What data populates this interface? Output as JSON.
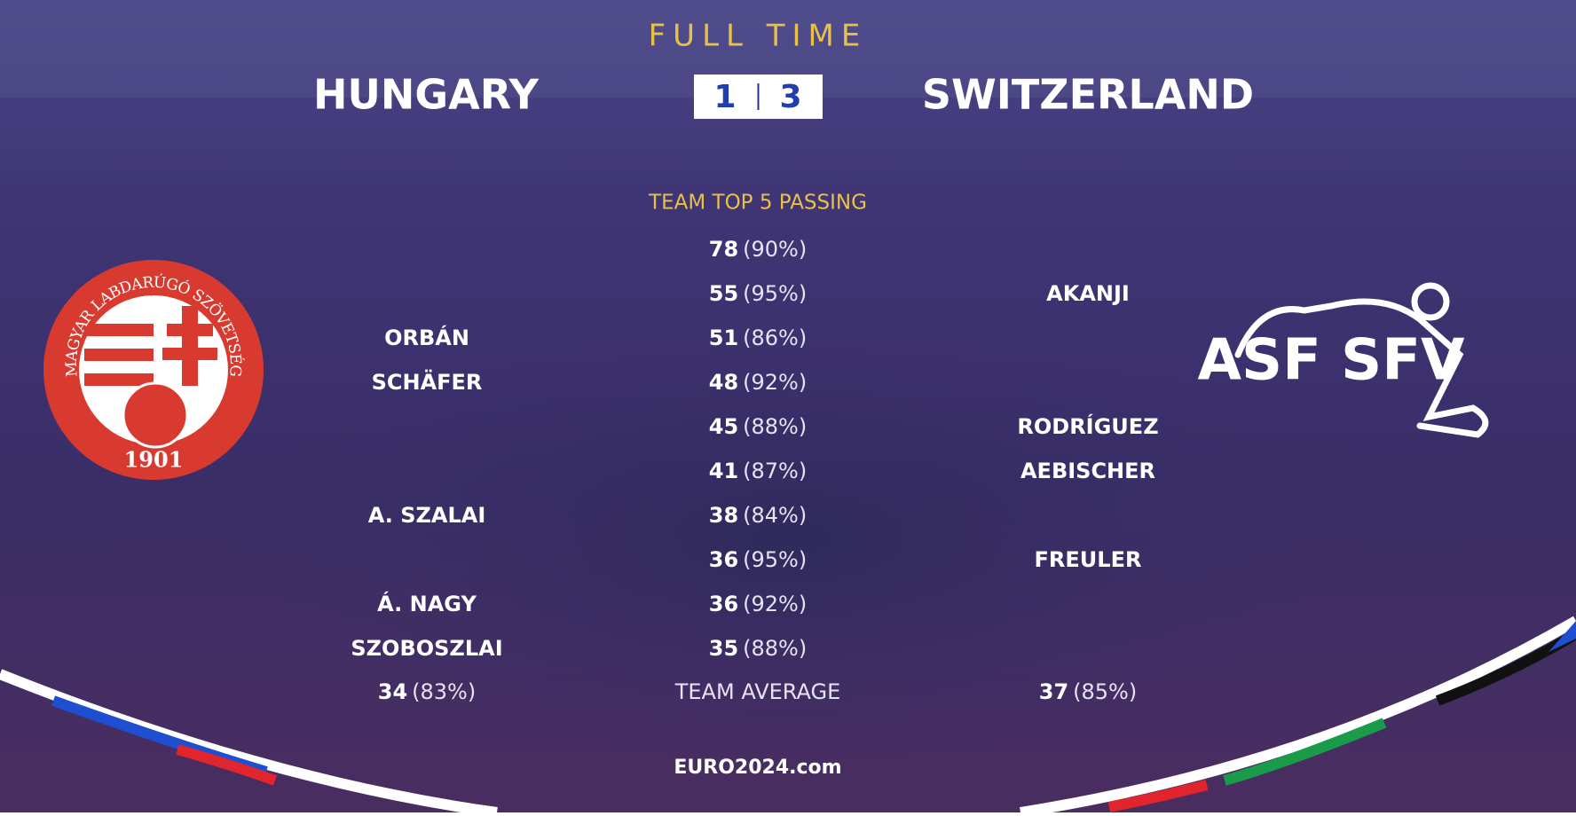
{
  "header": {
    "status": "FULL TIME",
    "home_team": "HUNGARY",
    "away_team": "SWITZERLAND",
    "home_score": 1,
    "away_score": 3
  },
  "stats": {
    "title": "TEAM TOP 5 PASSING",
    "rows": [
      [
        null,
        78,
        "(90%)",
        null
      ],
      [
        null,
        55,
        "(95%)",
        "AKANJI"
      ],
      [
        "ORBÁN",
        51,
        "(86%)",
        null
      ],
      [
        "SCHÄFER",
        48,
        "(92%)",
        null
      ],
      [
        null,
        45,
        "(88%)",
        "RODRÍGUEZ"
      ],
      [
        null,
        41,
        "(87%)",
        "AEBISCHER"
      ],
      [
        "A. SZALAI",
        38,
        "(84%)",
        null
      ],
      [
        null,
        36,
        "(95%)",
        "FREULER"
      ],
      [
        "Á. NAGY",
        36,
        "(92%)",
        null
      ],
      [
        "SZOBOSZLAI",
        35,
        "(88%)",
        null
      ]
    ],
    "average": {
      "label": "TEAM AVERAGE",
      "home_value": 34,
      "home_pct": "(83%)",
      "away_value": 37,
      "away_pct": "(85%)"
    }
  },
  "crests": {
    "home_text": "MAGYAR LABDARÚGÓ SZÖVETSÉG",
    "home_year": "1901",
    "away_text": "ASF SFV"
  },
  "footer": "EURO2024.com"
}
